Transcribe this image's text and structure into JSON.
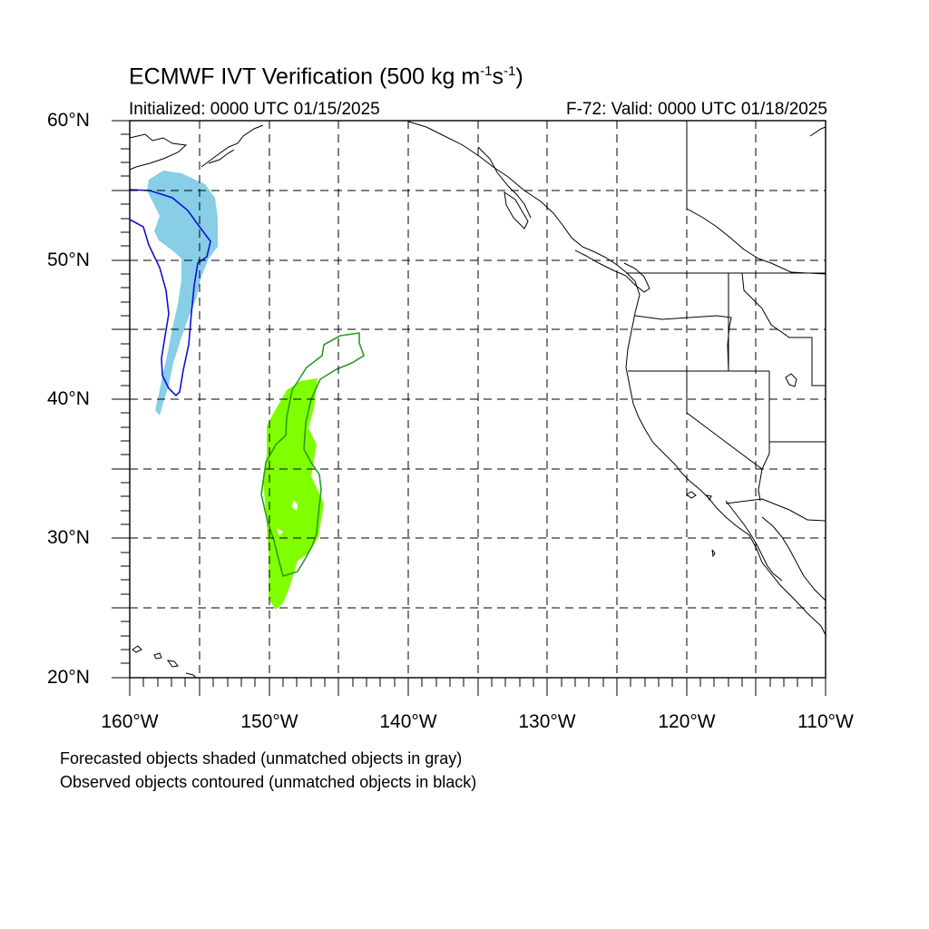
{
  "title": {
    "main": "ECMWF IVT Verification (500 kg m",
    "sup1": "-1",
    "mid": "s",
    "sup2": "-1",
    "end": ")"
  },
  "initialized": "Initialized: 0000 UTC 01/15/2025",
  "valid": "F-72: Valid: 0000 UTC 01/18/2025",
  "lat_labels": [
    "60°N",
    "50°N",
    "40°N",
    "30°N",
    "20°N"
  ],
  "lon_labels": [
    "160°W",
    "150°W",
    "140°W",
    "130°W",
    "120°W",
    "110°W"
  ],
  "notes": {
    "forecast": "Forecasted objects shaded (unmatched objects in gray)",
    "observed": "Observed objects contoured (unmatched objects in black)"
  },
  "colors": {
    "forecast_object_1": "#87CEE6",
    "observed_object_1": "#1010D8",
    "forecast_object_2": "#80FF00",
    "observed_object_2": "#2A9A2A",
    "coastline": "#000000",
    "grid": "#000000"
  },
  "map_extent": {
    "lon_min": -160,
    "lon_max": -110,
    "lat_min": 20,
    "lat_max": 60
  }
}
